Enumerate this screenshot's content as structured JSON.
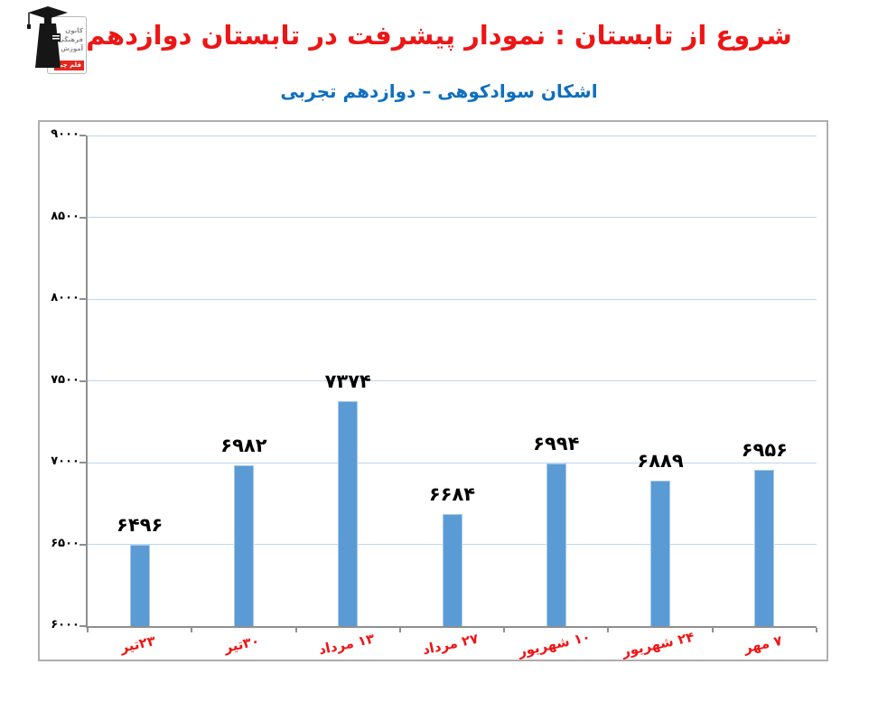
{
  "page": {
    "title": "شروع از تابستان : نمودار پیشرفت در تابستان دوازدهم",
    "subtitle": "اشکان سوادکوهی – دوازدهم تجربی"
  },
  "logo": {
    "lines": [
      "کانون",
      "فرهنگی",
      "آموزش"
    ],
    "badge": "قلم چی"
  },
  "colors": {
    "title_red": "#ee1515",
    "subtitle_blue": "#0d6fc0",
    "bar_fill": "#5b9bd5",
    "bar_border": "#a9c9e9",
    "gridline": "#bdd7ee",
    "axis": "#8f8f8f",
    "category_red": "#f01414"
  },
  "chart_data": {
    "type": "bar",
    "title": "شروع از تابستان : نمودار پیشرفت در تابستان دوازدهم",
    "subtitle": "اشکان سوادکوهی – دوازدهم تجربی",
    "xlabel": "",
    "ylabel": "",
    "categories": [
      "۲۳تیر",
      "۳۰تیر",
      "۱۳ مرداد",
      "۲۷ مرداد",
      "۱۰ شهریور",
      "۲۴ شهریور",
      "۷ مهر"
    ],
    "values": [
      6496,
      6982,
      7374,
      6684,
      6994,
      6889,
      6956
    ],
    "value_labels": [
      "۶۴۹۶",
      "۶۹۸۲",
      "۷۳۷۴",
      "۶۶۸۴",
      "۶۹۹۴",
      "۶۸۸۹",
      "۶۹۵۶"
    ],
    "y_ticks": [
      6000,
      6500,
      7000,
      7500,
      8000,
      8500,
      9000
    ],
    "y_tick_labels": [
      "۶۰۰۰",
      "۶۵۰۰",
      "۷۰۰۰",
      "۷۵۰۰",
      "۸۰۰۰",
      "۸۵۰۰",
      "۹۰۰۰"
    ],
    "ylim": [
      6000,
      9000
    ],
    "grid": true,
    "legend": false
  }
}
